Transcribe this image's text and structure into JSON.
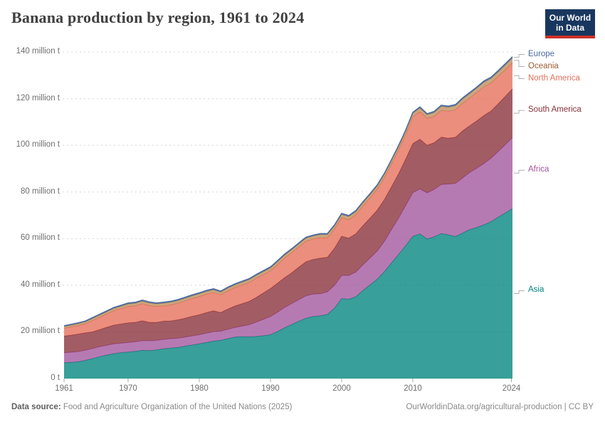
{
  "header": {
    "title": "Banana production by region, 1961 to 2024"
  },
  "logo": {
    "line1": "Our World",
    "line2": "in Data"
  },
  "footer": {
    "source_label": "Data source:",
    "source_text": " Food and Agriculture Organization of the United Nations (2025)",
    "right_text": "OurWorldinData.org/agricultural-production | CC BY"
  },
  "colors": {
    "background": "#ffffff",
    "grid": "#d5d5d5",
    "tick": "#a8a8a8",
    "axis_text": "#6e6e6e",
    "connector": "#b0b0b0",
    "logo_bg": "#18375F",
    "logo_accent": "#CE3027"
  },
  "chart_data": {
    "type": "area",
    "stacked": true,
    "title": "Banana production by region, 1961 to 2024",
    "unit": "million t",
    "grid": "horizontal dashed",
    "legend_position": "right",
    "xlim": [
      1961,
      2024
    ],
    "ylim": [
      0,
      140
    ],
    "ytick_values": [
      0,
      20,
      40,
      60,
      80,
      100,
      120,
      140
    ],
    "ytick_labels": [
      "0 t",
      "20 million t",
      "40 million t",
      "60 million t",
      "80 million t",
      "100 million t",
      "120 million t",
      "140 million t"
    ],
    "xtick_values": [
      1961,
      1970,
      1980,
      1990,
      2000,
      2010,
      2024
    ],
    "x": [
      1961,
      1962,
      1963,
      1964,
      1965,
      1966,
      1967,
      1968,
      1969,
      1970,
      1971,
      1972,
      1973,
      1974,
      1975,
      1976,
      1977,
      1978,
      1979,
      1980,
      1981,
      1982,
      1983,
      1984,
      1985,
      1986,
      1987,
      1988,
      1989,
      1990,
      1991,
      1992,
      1993,
      1994,
      1995,
      1996,
      1997,
      1998,
      1999,
      2000,
      2001,
      2002,
      2003,
      2004,
      2005,
      2006,
      2007,
      2008,
      2009,
      2010,
      2011,
      2012,
      2013,
      2014,
      2015,
      2016,
      2017,
      2018,
      2019,
      2020,
      2021,
      2022,
      2023,
      2024
    ],
    "series": [
      {
        "name": "Asia",
        "color": "#00847E",
        "text_color": "#00847E",
        "values": [
          6.8,
          7.0,
          7.2,
          7.8,
          8.6,
          9.4,
          10.1,
          10.7,
          11.1,
          11.4,
          11.7,
          12.1,
          12.0,
          12.3,
          12.8,
          13.1,
          13.4,
          13.9,
          14.4,
          14.9,
          15.5,
          16.1,
          16.4,
          17.1,
          17.8,
          18.0,
          17.9,
          18.1,
          18.4,
          18.8,
          20.2,
          21.8,
          23.2,
          24.6,
          25.9,
          26.6,
          26.9,
          27.5,
          30.2,
          34.3,
          34.0,
          35.1,
          37.8,
          40.2,
          42.6,
          45.8,
          49.6,
          53.2,
          57.0,
          61.0,
          62.0,
          59.8,
          60.8,
          62.2,
          61.6,
          60.9,
          62.4,
          63.9,
          64.8,
          65.9,
          67.3,
          69.2,
          71.0,
          72.9
        ]
      },
      {
        "name": "Africa",
        "color": "#A2559C",
        "text_color": "#A2559C",
        "values": [
          4.3,
          4.3,
          4.4,
          4.4,
          4.3,
          4.3,
          4.2,
          4.2,
          4.1,
          4.1,
          4.1,
          4.2,
          4.2,
          4.1,
          4.0,
          4.0,
          3.9,
          3.9,
          3.9,
          3.9,
          4.0,
          4.0,
          3.9,
          4.0,
          4.1,
          4.5,
          5.2,
          6.1,
          7.0,
          7.8,
          8.3,
          8.7,
          9.0,
          9.3,
          9.6,
          9.6,
          9.5,
          9.7,
          9.8,
          9.9,
          10.2,
          10.6,
          11.0,
          11.5,
          12.1,
          13.0,
          14.2,
          15.6,
          17.2,
          18.7,
          19.3,
          19.8,
          20.3,
          21.0,
          21.8,
          22.8,
          23.6,
          24.5,
          25.4,
          26.3,
          27.2,
          28.2,
          29.3,
          30.4
        ]
      },
      {
        "name": "South America",
        "color": "#883039",
        "text_color": "#883039",
        "values": [
          7.1,
          7.3,
          7.5,
          7.4,
          7.1,
          7.3,
          7.7,
          8.0,
          8.2,
          8.4,
          8.3,
          8.5,
          7.9,
          7.7,
          7.8,
          7.6,
          7.9,
          8.1,
          8.4,
          8.6,
          8.8,
          9.0,
          8.0,
          8.7,
          9.2,
          9.6,
          10.0,
          10.6,
          11.3,
          12.0,
          12.4,
          12.8,
          13.2,
          13.9,
          14.6,
          14.9,
          15.2,
          14.8,
          15.9,
          16.8,
          16.0,
          16.4,
          16.8,
          17.1,
          17.5,
          17.9,
          18.4,
          19.0,
          19.9,
          21.0,
          21.3,
          20.4,
          20.0,
          20.3,
          19.6,
          19.8,
          20.2,
          20.0,
          20.3,
          20.6,
          20.2,
          20.4,
          20.7,
          20.9
        ]
      },
      {
        "name": "North America",
        "color": "#E56E5A",
        "text_color": "#E56E5A",
        "values": [
          3.4,
          3.6,
          3.7,
          3.9,
          4.9,
          5.3,
          5.7,
          6.2,
          6.6,
          7.0,
          7.1,
          7.3,
          7.2,
          6.8,
          6.6,
          6.9,
          7.1,
          7.4,
          7.6,
          7.8,
          7.9,
          7.8,
          7.6,
          7.8,
          7.9,
          8.0,
          8.1,
          8.2,
          7.9,
          7.6,
          8.0,
          8.4,
          8.6,
          8.7,
          8.8,
          8.7,
          8.8,
          8.4,
          8.2,
          8.0,
          7.9,
          8.1,
          8.4,
          8.7,
          9.0,
          9.4,
          9.8,
          10.2,
          10.5,
          11.5,
          11.8,
          11.5,
          11.3,
          11.5,
          11.6,
          11.7,
          11.8,
          11.9,
          12.1,
          12.3,
          12.0,
          11.7,
          11.4,
          11.2
        ]
      },
      {
        "name": "Oceania",
        "color": "#BC8E5A",
        "text_color": "#9D5B33",
        "values": [
          0.7,
          0.72,
          0.75,
          0.8,
          0.85,
          0.88,
          0.92,
          0.96,
          1.0,
          1.05,
          1.06,
          1.08,
          1.08,
          1.09,
          1.1,
          1.1,
          1.11,
          1.12,
          1.12,
          1.12,
          1.13,
          1.13,
          1.14,
          1.14,
          1.15,
          1.16,
          1.17,
          1.18,
          1.19,
          1.2,
          1.21,
          1.22,
          1.23,
          1.24,
          1.25,
          1.26,
          1.27,
          1.28,
          1.29,
          1.3,
          1.31,
          1.32,
          1.33,
          1.34,
          1.35,
          1.38,
          1.4,
          1.43,
          1.46,
          1.5,
          1.54,
          1.58,
          1.62,
          1.66,
          1.7,
          1.74,
          1.78,
          1.82,
          1.86,
          1.9,
          1.93,
          1.95,
          1.98,
          2.0
        ]
      },
      {
        "name": "Europe",
        "color": "#4C6A9C",
        "text_color": "#4C6A9C",
        "values": [
          0.35,
          0.36,
          0.37,
          0.38,
          0.39,
          0.4,
          0.41,
          0.42,
          0.43,
          0.44,
          0.44,
          0.44,
          0.44,
          0.44,
          0.45,
          0.45,
          0.45,
          0.45,
          0.45,
          0.45,
          0.45,
          0.45,
          0.45,
          0.45,
          0.46,
          0.46,
          0.46,
          0.46,
          0.47,
          0.47,
          0.47,
          0.47,
          0.47,
          0.47,
          0.47,
          0.47,
          0.48,
          0.48,
          0.48,
          0.48,
          0.48,
          0.48,
          0.47,
          0.47,
          0.46,
          0.46,
          0.45,
          0.45,
          0.45,
          0.45,
          0.46,
          0.46,
          0.47,
          0.48,
          0.5,
          0.51,
          0.52,
          0.53,
          0.54,
          0.55,
          0.56,
          0.57,
          0.58,
          0.6
        ]
      }
    ]
  }
}
